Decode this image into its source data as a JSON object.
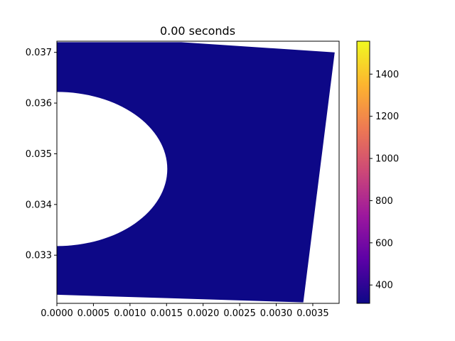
{
  "chart_data": {
    "type": "heatmap",
    "title": "0.00 seconds",
    "xlabel": "",
    "ylabel": "",
    "xlim": [
      0.0,
      0.00386
    ],
    "ylim": [
      0.03205,
      0.03722
    ],
    "x_ticks": [
      0.0,
      0.0005,
      0.001,
      0.0015,
      0.002,
      0.0025,
      0.003,
      0.0035
    ],
    "x_tick_labels": [
      "0.0000",
      "0.0005",
      "0.0010",
      "0.0015",
      "0.0020",
      "0.0025",
      "0.0030",
      "0.0035"
    ],
    "y_ticks": [
      0.033,
      0.034,
      0.035,
      0.036,
      0.037
    ],
    "y_tick_labels": [
      "0.033",
      "0.034",
      "0.035",
      "0.036",
      "0.037"
    ],
    "field_value": 313,
    "hole": {
      "center": [
        0.0,
        0.0347
      ],
      "radius_x": 0.00151,
      "radius_y": 0.00152
    },
    "domain_outline": [
      [
        0.0,
        0.0372
      ],
      [
        0.0017,
        0.0372
      ],
      [
        0.0038,
        0.037
      ],
      [
        0.00337,
        0.03207
      ],
      [
        0.0,
        0.03222
      ]
    ],
    "colorbar": {
      "colormap": "plasma",
      "range": [
        313,
        1556
      ],
      "ticks": [
        400,
        600,
        800,
        1000,
        1200,
        1400
      ],
      "tick_labels": [
        "400",
        "600",
        "800",
        "1000",
        "1200",
        "1400"
      ]
    },
    "colors": {
      "field": "#0d0887",
      "plasma": [
        "#0d0887",
        "#5c01a6",
        "#9c179e",
        "#cc4778",
        "#ed7953",
        "#fdb42f",
        "#f0f921"
      ]
    },
    "grid": false
  }
}
